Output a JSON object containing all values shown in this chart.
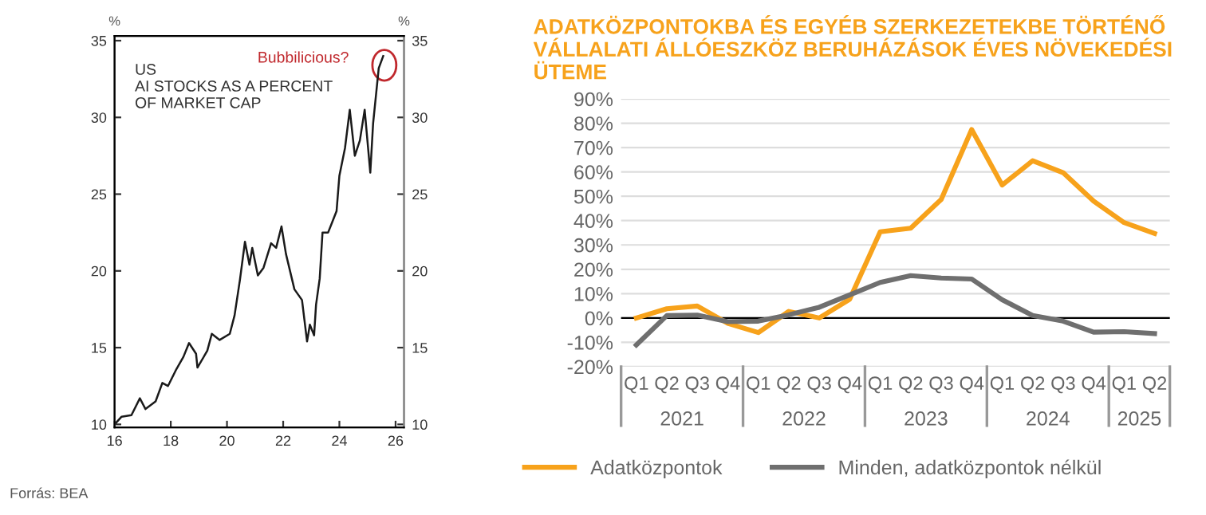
{
  "chart_data": [
    {
      "type": "line",
      "title": "US\nAI STOCKS AS A PERCENT\nOF MARKET CAP",
      "ylabel": "%",
      "y2label": "%",
      "x": [
        16.05,
        16.25,
        16.6,
        16.9,
        17.1,
        17.46,
        17.7,
        17.9,
        18.2,
        18.45,
        18.65,
        18.9,
        18.95,
        19.3,
        19.46,
        19.74,
        20.1,
        20.27,
        20.46,
        20.64,
        20.8,
        20.9,
        21.1,
        21.3,
        21.57,
        21.75,
        21.94,
        22.1,
        22.4,
        22.67,
        22.85,
        22.95,
        23.1,
        23.17,
        23.3,
        23.4,
        23.6,
        23.75,
        23.9,
        24.0,
        24.2,
        24.37,
        24.55,
        24.73,
        24.9,
        25.1,
        25.2,
        25.4,
        25.56
      ],
      "series": [
        {
          "color": "#1a1a1a",
          "values": [
            10.1,
            10.5,
            10.6,
            11.7,
            11.0,
            11.5,
            12.7,
            12.5,
            13.6,
            14.4,
            15.3,
            14.6,
            13.7,
            14.8,
            15.9,
            15.5,
            15.9,
            17.1,
            19.4,
            21.9,
            20.4,
            21.5,
            19.7,
            20.2,
            21.8,
            21.5,
            22.9,
            21.1,
            18.8,
            18.1,
            15.4,
            16.5,
            15.8,
            17.8,
            19.5,
            22.5,
            22.5,
            23.2,
            23.9,
            26.2,
            28.0,
            30.5,
            27.5,
            28.5,
            30.5,
            26.4,
            29.6,
            33.2,
            34.0
          ]
        }
      ],
      "xlim": [
        16,
        26.3
      ],
      "xticks": [
        16,
        18,
        20,
        22,
        24,
        26
      ],
      "ylim": [
        9.8,
        35.3
      ],
      "yticks": [
        10,
        15,
        20,
        25,
        30,
        35
      ],
      "y2lim": [
        9.8,
        35.3
      ],
      "y2ticks": [
        10,
        15,
        20,
        25,
        30,
        35
      ],
      "grid": false,
      "annotations": [
        {
          "text": "Bubbilicious?",
          "x": 25.6,
          "y": 33.4
        },
        "Forrás: BEA"
      ]
    },
    {
      "type": "line",
      "title": "ADATKÖZPONTOKBA ÉS EGYÉB SZERKEZETEKBE TÖRTÉNŐ VÁLLALATI ÁLLÓESZKÖZ BERUHÁZÁSOK ÉVES NÖVEKEDÉSI ÜTEME",
      "categories": [
        "Q1",
        "Q2",
        "Q3",
        "Q4",
        "Q1",
        "Q2",
        "Q3",
        "Q4",
        "Q1",
        "Q2",
        "Q3",
        "Q4",
        "Q1",
        "Q2",
        "Q3",
        "Q4",
        "Q1",
        "Q2"
      ],
      "series": [
        {
          "name": "Adatközpontok",
          "color": "#f7a21b",
          "values": [
            0,
            3.8,
            4.9,
            -2.2,
            -6,
            2.7,
            0,
            7.7,
            35.4,
            36.9,
            48.7,
            77.4,
            54.6,
            64.6,
            59.7,
            48,
            39.2,
            34.7
          ]
        },
        {
          "name": "Minden, adatközpontok nélkül",
          "color": "#6f6f6f",
          "values": [
            -11.1,
            1.0,
            1.2,
            -1.5,
            -1.3,
            1.3,
            4.4,
            9.5,
            14.6,
            17.4,
            16.4,
            16,
            7.5,
            1.0,
            -1.3,
            -5.8,
            -5.6,
            -6.4
          ]
        }
      ],
      "ylim": [
        -20,
        90
      ],
      "yticks": [
        {
          "value": -20,
          "label": "-20%"
        },
        {
          "value": -10,
          "label": "-10%"
        },
        {
          "value": 0,
          "label": "0%"
        },
        {
          "value": 10,
          "label": "10%"
        },
        {
          "value": 20,
          "label": "20%"
        },
        {
          "value": 30,
          "label": "30%"
        },
        {
          "value": 40,
          "label": "40%"
        },
        {
          "value": 50,
          "label": "50%"
        },
        {
          "value": 60,
          "label": "60%"
        },
        {
          "value": 70,
          "label": "70%"
        },
        {
          "value": 80,
          "label": "80%"
        },
        {
          "value": 90,
          "label": "90%"
        }
      ],
      "ref_lines": [
        {
          "axis": "y",
          "value": 0,
          "color": "#000000"
        }
      ],
      "grid": "y",
      "legend": "bottom",
      "annotations": [
        "2021",
        "2022",
        "2023",
        "2024",
        "2025"
      ]
    }
  ]
}
